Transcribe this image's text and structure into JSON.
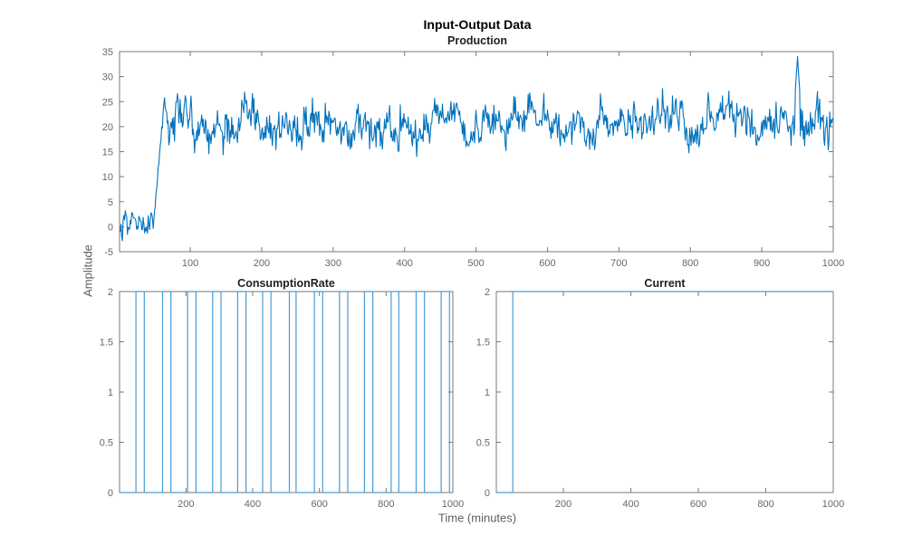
{
  "figure": {
    "title": "Input-Output Data",
    "xlabel": "Time (minutes)",
    "ylabel": "Amplitude",
    "background_color": "#ffffff",
    "line_color": "#0072BD",
    "line_color_light": "#4A9CD6",
    "axis_box_color": "#7a7a7a",
    "tick_label_color": "#676767",
    "axis_label_color": "#5e5e5e",
    "title_color": "#000000"
  },
  "chart_data": [
    {
      "id": "production",
      "type": "line",
      "title": "Production",
      "x_range": [
        1,
        1000
      ],
      "y_range": [
        -5,
        35
      ],
      "x_ticks": [
        100,
        200,
        300,
        400,
        500,
        600,
        700,
        800,
        900,
        1000
      ],
      "y_ticks": [
        -5,
        0,
        5,
        10,
        15,
        20,
        25,
        30,
        35
      ],
      "grid": false,
      "legend": null,
      "signal": {
        "kind": "noisy_step",
        "description": "Noisy signal around 0 (approx -4.5 to +3) until t~50, fast ramp up, then fluctuates around 21 (approx 11 to 31) with a single spike to 34 near t=950",
        "baseline_mean": 0,
        "baseline_std": 1.5,
        "step_time": 48,
        "rise_end": 64,
        "level_mean": 21,
        "level_std": 2.5,
        "level_min": 11,
        "level_max": 31,
        "spike_t": 950,
        "spike_value": 34,
        "seed": 7
      }
    },
    {
      "id": "consumption_rate",
      "type": "line",
      "title": "ConsumptionRate",
      "x_range": [
        1,
        1000
      ],
      "y_range": [
        0,
        2
      ],
      "x_ticks": [
        200,
        400,
        600,
        800,
        1000
      ],
      "y_ticks": [
        0,
        0.5,
        1,
        1.5,
        2
      ],
      "grid": false,
      "legend": null,
      "signal": {
        "kind": "pulse_train",
        "low": 0,
        "high": 2,
        "rise_times": [
          50,
          130,
          205,
          280,
          355,
          430,
          510,
          585,
          660,
          735,
          815,
          890,
          965
        ],
        "fall_times": [
          75,
          155,
          230,
          305,
          380,
          455,
          530,
          610,
          685,
          760,
          838,
          915,
          990
        ]
      }
    },
    {
      "id": "current",
      "type": "line",
      "title": "Current",
      "x_range": [
        1,
        1000
      ],
      "y_range": [
        0,
        2
      ],
      "x_ticks": [
        200,
        400,
        600,
        800,
        1000
      ],
      "y_ticks": [
        0,
        0.5,
        1,
        1.5,
        2
      ],
      "grid": false,
      "legend": null,
      "signal": {
        "kind": "step",
        "low": 0,
        "high": 2,
        "step_time": 50
      }
    }
  ]
}
